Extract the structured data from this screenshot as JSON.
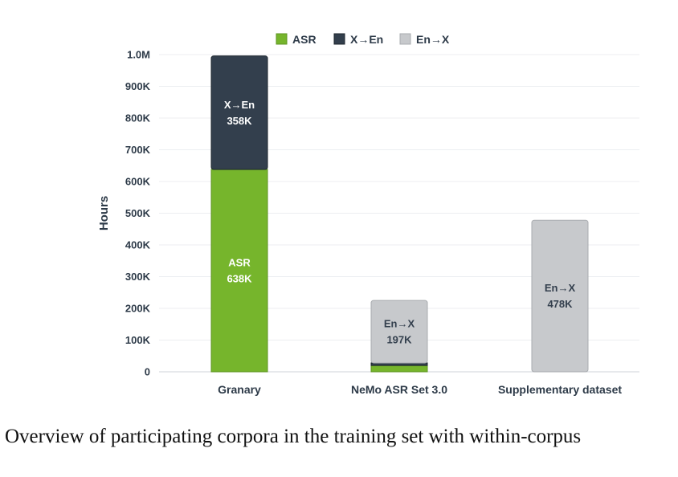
{
  "chart_data": {
    "type": "bar",
    "stacked": true,
    "ylabel": "Hours",
    "ylim": [
      0,
      1000000
    ],
    "yticks": [
      {
        "value": 0,
        "label": "0"
      },
      {
        "value": 100000,
        "label": "100K"
      },
      {
        "value": 200000,
        "label": "200K"
      },
      {
        "value": 300000,
        "label": "300K"
      },
      {
        "value": 400000,
        "label": "400K"
      },
      {
        "value": 500000,
        "label": "500K"
      },
      {
        "value": 600000,
        "label": "600K"
      },
      {
        "value": 700000,
        "label": "700K"
      },
      {
        "value": 800000,
        "label": "800K"
      },
      {
        "value": 900000,
        "label": "900K"
      },
      {
        "value": 1000000,
        "label": "1.0M"
      }
    ],
    "grid": true,
    "legend_position": "top-center",
    "categories": [
      "Granary",
      "NeMo ASR Set 3.0",
      "Supplementary dataset"
    ],
    "series": [
      {
        "name": "ASR",
        "color": "#76b52c",
        "values": [
          638000,
          20000,
          0
        ],
        "labels": [
          "ASR\n638K",
          "",
          ""
        ]
      },
      {
        "name": "X→En",
        "color": "#333f4d",
        "values": [
          358000,
          8000,
          0
        ],
        "labels": [
          "X→En\n358K",
          "",
          ""
        ]
      },
      {
        "name": "En→X",
        "color": "#c7c9cc",
        "values": [
          0,
          197000,
          478000
        ],
        "labels": [
          "",
          "En→X\n197K",
          "En→X\n478K"
        ]
      }
    ]
  },
  "caption": "Overview of participating corpora in the training set with within-corpus"
}
